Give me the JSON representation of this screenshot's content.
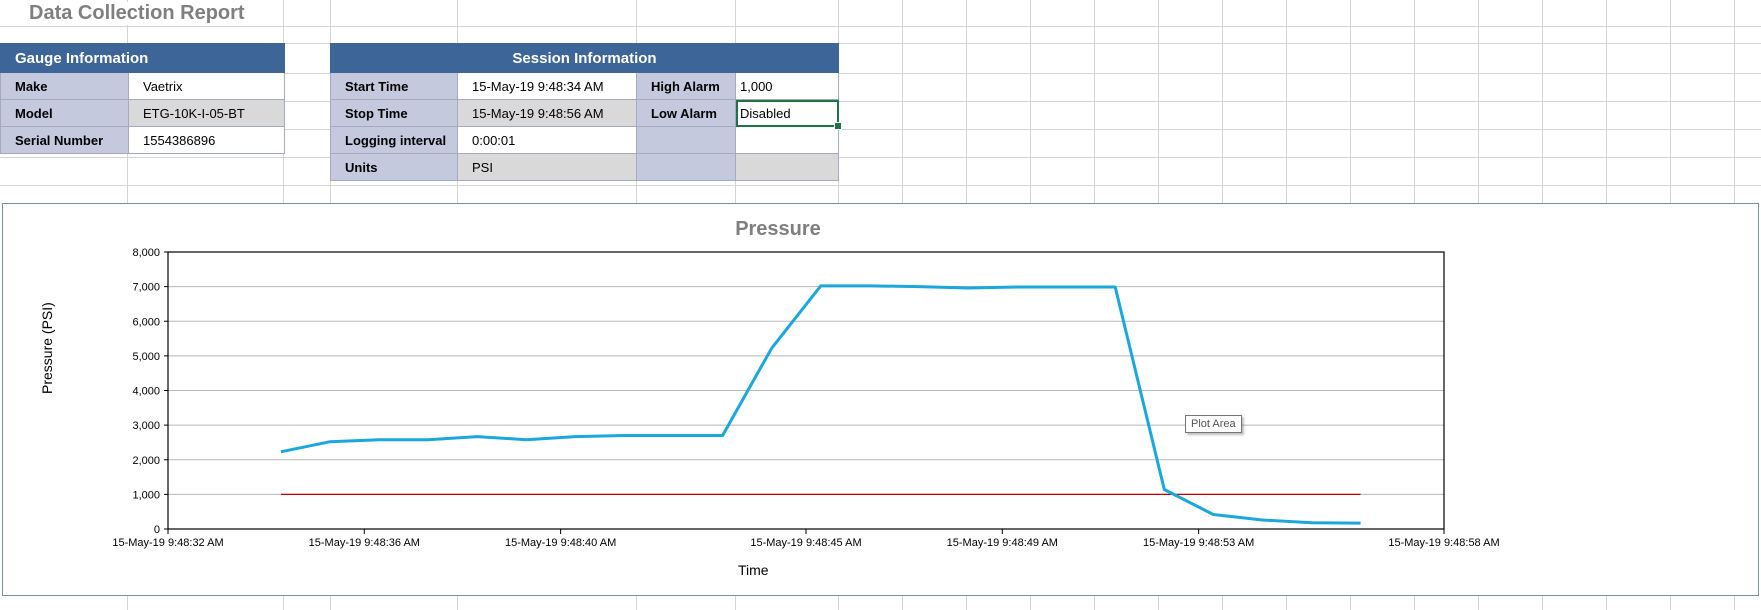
{
  "report": {
    "title": "Data Collection Report"
  },
  "gauge_info": {
    "header": "Gauge Information",
    "rows": [
      {
        "label": "Make",
        "value": "Vaetrix"
      },
      {
        "label": "Model",
        "value": "ETG-10K-I-05-BT"
      },
      {
        "label": "Serial Number",
        "value": "1554386896"
      }
    ]
  },
  "session_info": {
    "header": "Session Information",
    "rows": [
      {
        "label": "Start Time",
        "value": "15-May-19 9:48:34 AM",
        "label2": "High Alarm",
        "value2": "1,000"
      },
      {
        "label": "Stop Time",
        "value": "15-May-19 9:48:56 AM",
        "label2": "Low Alarm",
        "value2": "Disabled"
      },
      {
        "label": "Logging interval",
        "value": "0:00:01",
        "label2": "",
        "value2": ""
      },
      {
        "label": "Units",
        "value": "PSI",
        "label2": "",
        "value2": ""
      }
    ]
  },
  "tooltip": {
    "text": "Plot Area"
  },
  "colors": {
    "header_bg": "#3d6598",
    "label_bg": "#c5c9de",
    "alt_value_bg": "#d9d9d9",
    "pressure_line": "#1aa7dc",
    "alarm_line": "#c00000",
    "selection": "#217346"
  },
  "chart_data": {
    "type": "line",
    "title": "Pressure",
    "xlabel": "Time",
    "ylabel": "Pressure (PSI)",
    "ylim": [
      0,
      8000
    ],
    "yticks": [
      "0",
      "1,000",
      "2,000",
      "3,000",
      "4,000",
      "5,000",
      "6,000",
      "7,000",
      "8,000"
    ],
    "xlim_seconds": [
      32,
      58
    ],
    "xticks": [
      {
        "s": 32,
        "label": "15-May-19 9:48:32 AM"
      },
      {
        "s": 36,
        "label": "15-May-19 9:48:36 AM"
      },
      {
        "s": 40,
        "label": "15-May-19 9:48:40 AM"
      },
      {
        "s": 45,
        "label": "15-May-19 9:48:45 AM"
      },
      {
        "s": 49,
        "label": "15-May-19 9:48:49 AM"
      },
      {
        "s": 53,
        "label": "15-May-19 9:48:53 AM"
      },
      {
        "s": 58,
        "label": "15-May-19 9:48:58 AM"
      }
    ],
    "grid": true,
    "legend": "none",
    "x": [
      34.3,
      35.3,
      36.3,
      37.3,
      38.3,
      39.3,
      40.3,
      41.3,
      42.3,
      43.3,
      44.3,
      45.3,
      46.3,
      47.3,
      48.3,
      49.3,
      50.3,
      51.3,
      52.3,
      53.3,
      54.3,
      55.3,
      56.3
    ],
    "series": [
      {
        "name": "Pressure",
        "color": "#1aa7dc",
        "values": [
          2230,
          2520,
          2580,
          2580,
          2670,
          2580,
          2670,
          2700,
          2700,
          2700,
          5220,
          7020,
          7020,
          7000,
          6960,
          6990,
          6990,
          6990,
          1140,
          420,
          260,
          180,
          170
        ]
      },
      {
        "name": "High Alarm",
        "color": "#c00000",
        "values": [
          1000,
          1000,
          1000,
          1000,
          1000,
          1000,
          1000,
          1000,
          1000,
          1000,
          1000,
          1000,
          1000,
          1000,
          1000,
          1000,
          1000,
          1000,
          1000,
          1000,
          1000,
          1000,
          1000
        ]
      }
    ]
  }
}
